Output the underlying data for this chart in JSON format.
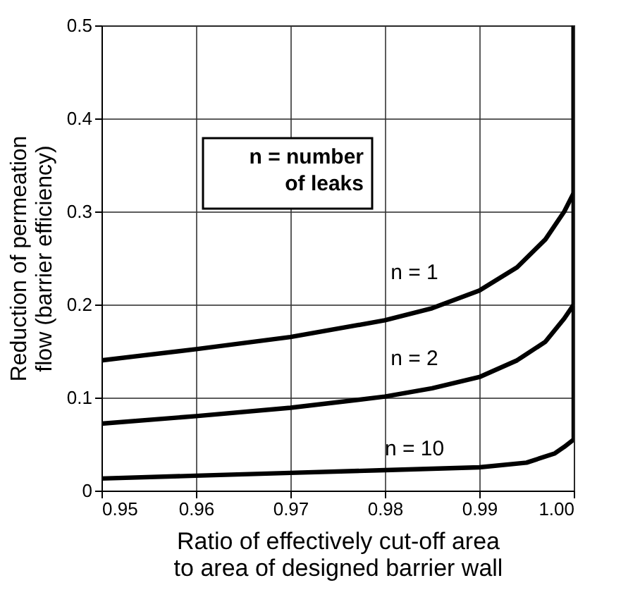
{
  "chart_data": {
    "type": "line",
    "xlabel": "Ratio of effectively cut-off area to area of designed barrier wall",
    "ylabel": "Reduction of permeation flow (barrier efficiency)",
    "series": [
      {
        "color": "#000000",
        "x": [
          0.95,
          0.96,
          0.97,
          0.98,
          0.985,
          0.99,
          0.994,
          0.997,
          0.999,
          1.0,
          1.0
        ],
        "values": [
          0.14,
          0.152,
          0.165,
          0.183,
          0.196,
          0.215,
          0.24,
          0.27,
          0.3,
          0.32,
          0.5
        ]
      },
      {
        "color": "#000000",
        "x": [
          0.95,
          0.96,
          0.97,
          0.98,
          0.985,
          0.99,
          0.994,
          0.997,
          0.999,
          1.0,
          1.0
        ],
        "values": [
          0.072,
          0.08,
          0.089,
          0.101,
          0.11,
          0.122,
          0.14,
          0.16,
          0.185,
          0.2,
          0.5
        ]
      },
      {
        "color": "#000000",
        "x": [
          0.95,
          0.96,
          0.97,
          0.98,
          0.99,
          0.995,
          0.998,
          0.999,
          1.0,
          1.0
        ],
        "values": [
          0.013,
          0.016,
          0.019,
          0.022,
          0.025,
          0.03,
          0.04,
          0.047,
          0.055,
          0.5
        ]
      }
    ],
    "annotations": [
      "n = number of leaks",
      "n = 1",
      "n = 2",
      "n = 10"
    ],
    "xlim": [
      0.95,
      1.0
    ],
    "xticks": [
      0.95,
      0.96,
      0.97,
      0.98,
      0.99,
      {
        "value": 1.0,
        "label": "1.00"
      }
    ],
    "ylim": [
      0,
      0.5
    ],
    "yticks": [
      0,
      0.1,
      0.2,
      0.3,
      0.4,
      0.5
    ],
    "grid": true,
    "line_style": "solid",
    "marker": "none"
  }
}
